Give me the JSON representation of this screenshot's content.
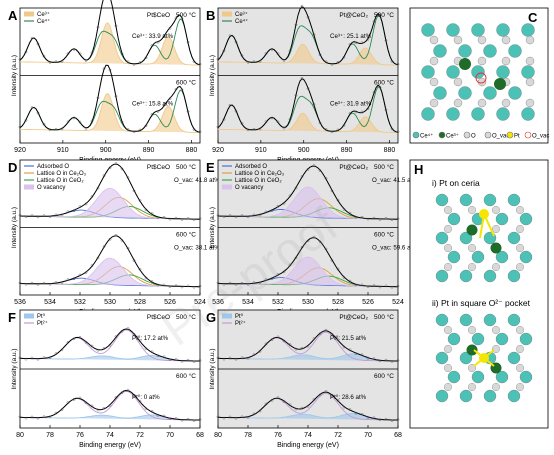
{
  "watermark": "Pre-proof",
  "colors": {
    "Ce3": "#f0c98a",
    "Ce4": "#2e8b57",
    "adsorbed": "#4a6fdc",
    "lattice_ce2o3": "#e0a040",
    "lattice_ceo2": "#3aa845",
    "vacancy": "#d9c2ee",
    "pt0": "#9fc7ea",
    "pt2": "#c49ad9",
    "envelope": "#000000",
    "ce_atom": "#4cc2b6",
    "ce3_atom": "#1f6b2a",
    "o_atom": "#d8d8d8",
    "pt_atom": "#f4e600",
    "ovac": "#e03030"
  },
  "panels": [
    {
      "letter": "A",
      "group": "ce",
      "xlim": [
        920,
        878
      ],
      "ticks": [
        920,
        910,
        900,
        890,
        880
      ],
      "xlabel": "Binding energy (eV)",
      "ylabel": "Intensity (a.u.)",
      "shaded": false,
      "top": {
        "label": "Pt$CeO",
        "annot": "Ce³⁺: 33.9 at%",
        "temp": "500 °C"
      },
      "bottom": {
        "label": "",
        "annot": "Ce³⁺: 15.8 at%",
        "temp": "600 °C"
      },
      "legend": [
        "Ce³⁺",
        "Ce⁴⁺"
      ]
    },
    {
      "letter": "B",
      "group": "ce",
      "xlim": [
        920,
        878
      ],
      "ticks": [
        920,
        910,
        900,
        890,
        880
      ],
      "xlabel": "Binding energy (eV)",
      "ylabel": "Intensity (a.u.)",
      "shaded": true,
      "top": {
        "label": "Pt@CeO₂",
        "annot": "Ce³⁺: 25.1 at%",
        "temp": "500 °C"
      },
      "bottom": {
        "label": "",
        "annot": "Ce³⁺: 31.9 at%",
        "temp": "600 °C"
      },
      "legend": [
        "Ce³⁺",
        "Ce⁴⁺"
      ]
    },
    {
      "letter": "D",
      "group": "o",
      "xlim": [
        536,
        524
      ],
      "ticks": [
        536,
        534,
        532,
        530,
        528,
        526,
        524
      ],
      "xlabel": "Binding energy (eV)",
      "ylabel": "Intensity (a.u.)",
      "shaded": false,
      "top": {
        "label": "Pt$CeO",
        "annot": "O_vac: 41.8 at%",
        "temp": "500 °C"
      },
      "bottom": {
        "label": "",
        "annot": "O_vac: 38.1 at%",
        "temp": "600 °C"
      },
      "legend": [
        "Adsorbed O",
        "Lattice O in Ce₂O₃",
        "Lattice O in CeO₂",
        "O vacancy"
      ]
    },
    {
      "letter": "E",
      "group": "o",
      "xlim": [
        536,
        524
      ],
      "ticks": [
        536,
        534,
        532,
        530,
        528,
        526,
        524
      ],
      "xlabel": "Binding energy (eV)",
      "ylabel": "Intensity (a.u.)",
      "shaded": true,
      "top": {
        "label": "Pt@CeO₂",
        "annot": "O_vac: 41.5 at%",
        "temp": "500 °C"
      },
      "bottom": {
        "label": "",
        "annot": "O_vac: 59.6 at%",
        "temp": "600 °C"
      },
      "legend": [
        "Adsorbed O",
        "Lattice O in Ce₂O₃",
        "Lattice O in CeO₂",
        "O vacancy"
      ]
    },
    {
      "letter": "F",
      "group": "pt",
      "xlim": [
        80,
        68
      ],
      "ticks": [
        80,
        78,
        76,
        74,
        72,
        70,
        68
      ],
      "xlabel": "Binding energy (eV)",
      "ylabel": "Intensity (a.u.)",
      "shaded": false,
      "top": {
        "label": "Pt$CeO",
        "annot": "Pt⁰: 17.2 at%",
        "temp": "500 °C"
      },
      "bottom": {
        "label": "",
        "annot": "Pt⁰: 0 at%",
        "temp": "600 °C"
      },
      "legend": [
        "Pt⁰",
        "Pt²⁺"
      ]
    },
    {
      "letter": "G",
      "group": "pt",
      "xlim": [
        80,
        68
      ],
      "ticks": [
        80,
        78,
        76,
        74,
        72,
        70,
        68
      ],
      "xlabel": "Binding energy (eV)",
      "ylabel": "Intensity (a.u.)",
      "shaded": true,
      "top": {
        "label": "Pt@CeO₂",
        "annot": "Pt⁰: 21.5 at%",
        "temp": "500 °C"
      },
      "bottom": {
        "label": "",
        "annot": "Pt⁰: 28.6 at%",
        "temp": "600 °C"
      },
      "legend": [
        "Pt⁰",
        "Pt²⁺"
      ]
    }
  ],
  "panel_C": {
    "letter": "C",
    "legend": [
      "Ce⁴⁺",
      "Ce³⁺",
      "O",
      "O_vac",
      "Pt",
      "O_vac"
    ]
  },
  "panel_H": {
    "letter": "H",
    "title1": "i) Pt on ceria",
    "title2": "ii) Pt in square O²⁻ pocket"
  },
  "chart_data": [
    {
      "type": "line",
      "panel": "A",
      "x_range": [
        920,
        878
      ],
      "series": [
        {
          "name": "Ce³⁺",
          "peaks": [
            [
              899.6,
              3.2
            ],
            [
              885.4,
              2.2
            ]
          ]
        },
        {
          "name": "Ce⁴⁺",
          "peaks": [
            [
              916.8,
              1.9
            ],
            [
              907.4,
              1.1
            ],
            [
              901.0,
              2.2
            ],
            [
              898.2,
              1.8
            ],
            [
              888.6,
              1.5
            ],
            [
              882.5,
              3.6
            ]
          ]
        }
      ],
      "annotations": [
        "Ce³⁺: 33.9 at%",
        "Ce³⁺: 15.8 at%"
      ]
    },
    {
      "type": "line",
      "panel": "B",
      "x_range": [
        920,
        878
      ],
      "series": [
        {
          "name": "Ce³⁺",
          "peaks": [
            [
              900.2,
              1.5
            ],
            [
              885.6,
              1.3
            ]
          ]
        },
        {
          "name": "Ce⁴⁺",
          "peaks": [
            [
              916.8,
              2.1
            ],
            [
              907.4,
              1.1
            ],
            [
              901.0,
              2.6
            ],
            [
              898.2,
              2.0
            ],
            [
              888.6,
              1.6
            ],
            [
              882.5,
              3.9
            ]
          ]
        }
      ],
      "annotations": [
        "Ce³⁺: 25.1 at%",
        "Ce³⁺: 31.9 at%"
      ]
    },
    {
      "type": "line",
      "panel": "D",
      "x_range": [
        536,
        524
      ],
      "series": [
        {
          "name": "Adsorbed O",
          "peaks": [
            [
              531.9,
              0.55
            ]
          ]
        },
        {
          "name": "Lattice O in Ce₂O₃",
          "peaks": [
            [
              529.4,
              1.6
            ]
          ]
        },
        {
          "name": "Lattice O in CeO₂",
          "peaks": [
            [
              528.7,
              0.9
            ]
          ]
        },
        {
          "name": "O vacancy",
          "peaks": [
            [
              530.0,
              2.3
            ]
          ]
        }
      ],
      "annotations": [
        "O_vac: 41.8 at%",
        "O_vac: 38.1 at%"
      ]
    },
    {
      "type": "line",
      "panel": "E",
      "x_range": [
        536,
        524
      ],
      "series": [
        {
          "name": "Adsorbed O",
          "peaks": [
            [
              531.8,
              0.6
            ]
          ]
        },
        {
          "name": "Lattice O in Ce₂O₃",
          "peaks": [
            [
              529.3,
              1.5
            ]
          ]
        },
        {
          "name": "Lattice O in CeO₂",
          "peaks": [
            [
              528.6,
              0.8
            ]
          ]
        },
        {
          "name": "O vacancy",
          "peaks": [
            [
              530.0,
              2.4
            ]
          ]
        }
      ],
      "annotations": [
        "O_vac: 41.5 at%",
        "O_vac: 59.6 at%"
      ]
    },
    {
      "type": "line",
      "panel": "F",
      "x_range": [
        80,
        68
      ],
      "series": [
        {
          "name": "Pt⁰",
          "peaks": [
            [
              74.5,
              0.35
            ],
            [
              71.2,
              0.45
            ]
          ]
        },
        {
          "name": "Pt²⁺",
          "peaks": [
            [
              76.2,
              2.0
            ],
            [
              72.9,
              2.8
            ]
          ]
        }
      ],
      "annotations": [
        "Pt⁰: 17.2 at%",
        "Pt⁰: 0 at%"
      ]
    },
    {
      "type": "line",
      "panel": "G",
      "x_range": [
        80,
        68
      ],
      "series": [
        {
          "name": "Pt⁰",
          "peaks": [
            [
              74.3,
              0.45
            ],
            [
              71.0,
              0.6
            ]
          ]
        },
        {
          "name": "Pt²⁺",
          "peaks": [
            [
              76.1,
              2.0
            ],
            [
              72.8,
              2.6
            ]
          ]
        }
      ],
      "annotations": [
        "Pt⁰: 21.5 at%",
        "Pt⁰: 28.6 at%"
      ]
    }
  ]
}
